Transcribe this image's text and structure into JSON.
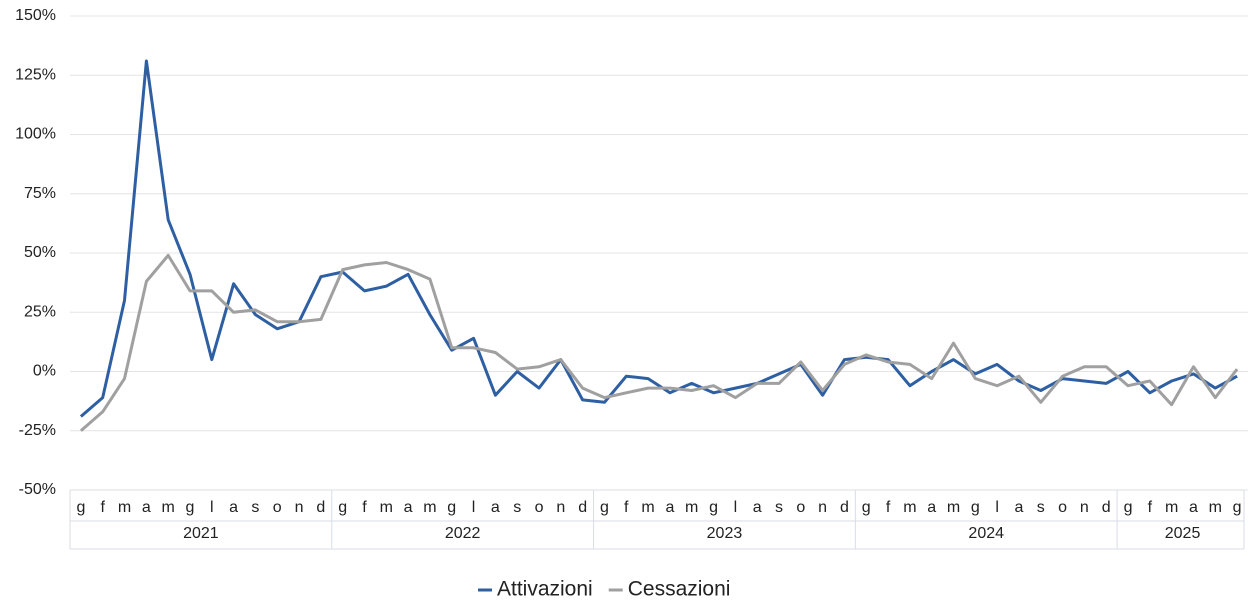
{
  "chart_data": {
    "type": "line",
    "categories": [
      "g",
      "f",
      "m",
      "a",
      "m",
      "g",
      "l",
      "a",
      "s",
      "o",
      "n",
      "d",
      "g",
      "f",
      "m",
      "a",
      "m",
      "g",
      "l",
      "a",
      "s",
      "o",
      "n",
      "d",
      "g",
      "f",
      "m",
      "a",
      "m",
      "g",
      "l",
      "a",
      "s",
      "o",
      "n",
      "d",
      "g",
      "f",
      "m",
      "a",
      "m",
      "g",
      "l",
      "a",
      "s",
      "o",
      "n",
      "d",
      "g",
      "f",
      "m",
      "a",
      "m",
      "g"
    ],
    "groups": [
      {
        "label": "2021",
        "count": 12
      },
      {
        "label": "2022",
        "count": 12
      },
      {
        "label": "2023",
        "count": 12
      },
      {
        "label": "2024",
        "count": 12
      },
      {
        "label": "2025",
        "count": 6
      }
    ],
    "series": [
      {
        "name": "Attivazioni",
        "color": "#2e5fa3",
        "values": [
          -19,
          -11,
          30,
          131,
          64,
          41,
          5,
          37,
          24,
          18,
          21,
          40,
          42,
          34,
          36,
          41,
          24,
          9,
          14,
          -10,
          0,
          -7,
          5,
          -12,
          -13,
          -2,
          -3,
          -9,
          -5,
          -9,
          -7,
          -5,
          -1,
          3,
          -10,
          5,
          6,
          5,
          -6,
          0,
          5,
          -1,
          3,
          -4,
          -8,
          -3,
          -4,
          -5,
          0,
          -9,
          -4,
          -1,
          -7,
          -2
        ]
      },
      {
        "name": "Cessazioni",
        "color": "#a0a0a0",
        "values": [
          -25,
          -17,
          -3,
          38,
          49,
          34,
          34,
          25,
          26,
          21,
          21,
          22,
          43,
          45,
          46,
          43,
          39,
          10,
          10,
          8,
          1,
          2,
          5,
          -7,
          -11,
          -9,
          -7,
          -7,
          -8,
          -6,
          -11,
          -5,
          -5,
          4,
          -8,
          3,
          7,
          4,
          3,
          -3,
          12,
          -3,
          -6,
          -2,
          -13,
          -2,
          2,
          2,
          -6,
          -4,
          -14,
          2,
          -11,
          1
        ]
      }
    ],
    "ylim": [
      -50,
      150
    ],
    "yticks": [
      {
        "value": -50,
        "label": "-50%"
      },
      {
        "value": -25,
        "label": "-25%"
      },
      {
        "value": 0,
        "label": "0%"
      },
      {
        "value": 25,
        "label": "25%"
      },
      {
        "value": 50,
        "label": "50%"
      },
      {
        "value": 75,
        "label": "75%"
      },
      {
        "value": 100,
        "label": "100%"
      },
      {
        "value": 125,
        "label": "125%"
      },
      {
        "value": 150,
        "label": "150%"
      }
    ],
    "grid": true,
    "legend": "bottom"
  }
}
